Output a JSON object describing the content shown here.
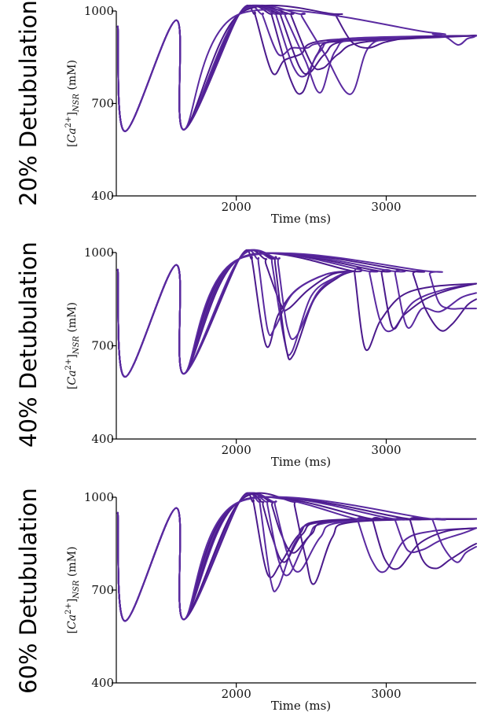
{
  "chart_data": [
    {
      "type": "line",
      "title": "20% Detubulation",
      "xlabel": "Time (ms)",
      "ylabel": {
        "prefix": "[",
        "main": "Ca",
        "sup": "2+",
        "close": "]",
        "sub": "NSR",
        "unit": " (mM)"
      },
      "xlim": [
        1200,
        3600
      ],
      "ylim": [
        400,
        1000
      ],
      "xticks": [
        2000,
        3000
      ],
      "xtick_labels": [
        "2000",
        "3000"
      ],
      "yticks": [
        400,
        700,
        1000
      ],
      "ytick_labels": [
        "400",
        "700",
        "1000"
      ],
      "series": [
        {
          "x": [
            1210,
            1260,
            1600,
            1650,
            2020,
            2120,
            2130,
            2240,
            2320,
            2430,
            2600,
            3600
          ],
          "y": [
            950,
            610,
            970,
            615,
            990,
            990,
            980,
            800,
            840,
            860,
            905,
            920
          ]
        },
        {
          "x": [
            1210,
            1260,
            1600,
            1650,
            2020,
            2170,
            2180,
            2280,
            2370,
            2470,
            2640,
            3600
          ],
          "y": [
            950,
            610,
            970,
            615,
            990,
            990,
            980,
            860,
            880,
            880,
            900,
            920
          ]
        },
        {
          "x": [
            1210,
            1260,
            1600,
            1650,
            2020,
            2230,
            2240,
            2360,
            2440,
            2540,
            2700,
            3600
          ],
          "y": [
            950,
            610,
            970,
            615,
            990,
            990,
            980,
            780,
            735,
            860,
            905,
            920
          ]
        },
        {
          "x": [
            1210,
            1260,
            1600,
            1650,
            2020,
            2260,
            2270,
            2380,
            2460,
            2560,
            2720,
            3600
          ],
          "y": [
            950,
            610,
            970,
            615,
            990,
            990,
            980,
            820,
            790,
            870,
            910,
            920
          ]
        },
        {
          "x": [
            1210,
            1260,
            1600,
            1650,
            2020,
            2290,
            2300,
            2420,
            2490,
            2590,
            2760,
            3600
          ],
          "y": [
            950,
            610,
            970,
            615,
            990,
            990,
            980,
            820,
            800,
            860,
            905,
            920
          ]
        },
        {
          "x": [
            1210,
            1260,
            1600,
            1650,
            2020,
            2320,
            2330,
            2460,
            2560,
            2660,
            2820,
            3600
          ],
          "y": [
            950,
            610,
            970,
            615,
            990,
            990,
            980,
            840,
            735,
            870,
            910,
            920
          ]
        },
        {
          "x": [
            1210,
            1260,
            1600,
            1650,
            2020,
            2360,
            2370,
            2500,
            2580,
            2680,
            2860,
            3600
          ],
          "y": [
            950,
            610,
            970,
            615,
            990,
            990,
            980,
            830,
            815,
            860,
            900,
            920
          ]
        },
        {
          "x": [
            1210,
            1260,
            1600,
            1650,
            2020,
            2430,
            2440,
            2590,
            2760,
            2880,
            3060,
            3600
          ],
          "y": [
            950,
            610,
            970,
            615,
            990,
            990,
            980,
            860,
            730,
            880,
            910,
            920
          ]
        },
        {
          "x": [
            1210,
            1260,
            1600,
            1650,
            2020,
            2660,
            2670,
            2770,
            2880,
            3000,
            3200,
            3600
          ],
          "y": [
            950,
            610,
            970,
            615,
            990,
            990,
            980,
            900,
            880,
            900,
            915,
            920
          ]
        },
        {
          "x": [
            1210,
            1260,
            1600,
            1650,
            2020,
            3300,
            3310,
            3400,
            3480,
            3540,
            3580,
            3600
          ],
          "y": [
            950,
            610,
            970,
            615,
            990,
            930,
            925,
            915,
            890,
            910,
            915,
            920
          ]
        }
      ]
    },
    {
      "type": "line",
      "title": "40% Detubulation",
      "xlabel": "Time (ms)",
      "ylabel": {
        "prefix": "[",
        "main": "Ca",
        "sup": "2+",
        "close": "]",
        "sub": "NSR",
        "unit": " (mM)"
      },
      "xlim": [
        1200,
        3600
      ],
      "ylim": [
        400,
        1000
      ],
      "xticks": [
        2000,
        3000
      ],
      "xtick_labels": [
        "2000",
        "3000"
      ],
      "yticks": [
        400,
        700,
        1000
      ],
      "ytick_labels": [
        "400",
        "700",
        "1000"
      ],
      "series": [
        {
          "x": [
            1210,
            1260,
            1600,
            1650,
            2020,
            2100,
            2110,
            2200,
            2280,
            2400,
            2600,
            2780
          ],
          "y": [
            945,
            600,
            960,
            610,
            980,
            980,
            960,
            700,
            800,
            880,
            930,
            940
          ]
        },
        {
          "x": [
            1210,
            1260,
            1600,
            1650,
            2020,
            2140,
            2150,
            2210,
            2260,
            2380,
            2600,
            2780
          ],
          "y": [
            945,
            600,
            960,
            610,
            980,
            980,
            960,
            750,
            760,
            870,
            930,
            940
          ]
        },
        {
          "x": [
            1210,
            1260,
            1600,
            1650,
            2020,
            2190,
            2200,
            2300,
            2350,
            2480,
            2640,
            2780
          ],
          "y": [
            945,
            600,
            960,
            610,
            980,
            980,
            960,
            830,
            820,
            880,
            930,
            940
          ]
        },
        {
          "x": [
            1210,
            1260,
            1600,
            1650,
            2020,
            2230,
            2240,
            2320,
            2370,
            2500,
            2660,
            2780
          ],
          "y": [
            945,
            600,
            960,
            610,
            980,
            980,
            960,
            720,
            680,
            860,
            920,
            940
          ]
        },
        {
          "x": [
            1210,
            1260,
            1600,
            1650,
            2020,
            2250,
            2260,
            2330,
            2380,
            2520,
            2680,
            2780
          ],
          "y": [
            945,
            600,
            960,
            610,
            980,
            980,
            960,
            700,
            670,
            850,
            920,
            940
          ]
        },
        {
          "x": [
            1210,
            1260,
            1600,
            1650,
            2020,
            2270,
            2280,
            2340,
            2400,
            2540,
            2700,
            2780
          ],
          "y": [
            945,
            600,
            960,
            610,
            980,
            980,
            960,
            760,
            730,
            870,
            930,
            940
          ]
        },
        {
          "x": [
            1210,
            1260,
            1600,
            1650,
            2020,
            2780,
            2790,
            2860,
            2960,
            3100,
            3300,
            3600
          ],
          "y": [
            945,
            600,
            960,
            610,
            980,
            940,
            930,
            690,
            780,
            860,
            890,
            900
          ]
        },
        {
          "x": [
            1210,
            1260,
            1600,
            1650,
            2020,
            2880,
            2890,
            2960,
            3040,
            3180,
            3380,
            3600
          ],
          "y": [
            945,
            600,
            960,
            610,
            980,
            940,
            930,
            780,
            750,
            840,
            880,
            900
          ]
        },
        {
          "x": [
            1210,
            1260,
            1600,
            1650,
            2020,
            2960,
            2970,
            3040,
            3120,
            3260,
            3420,
            3600
          ],
          "y": [
            945,
            600,
            960,
            610,
            980,
            940,
            930,
            760,
            800,
            850,
            880,
            900
          ]
        },
        {
          "x": [
            1210,
            1260,
            1600,
            1650,
            2020,
            3050,
            3060,
            3140,
            3240,
            3360,
            3500,
            3600
          ],
          "y": [
            945,
            600,
            960,
            610,
            980,
            940,
            930,
            760,
            820,
            810,
            855,
            870
          ]
        },
        {
          "x": [
            1210,
            1260,
            1600,
            1650,
            2020,
            3170,
            3180,
            3260,
            3360,
            3440,
            3540,
            3600
          ],
          "y": [
            945,
            600,
            960,
            610,
            980,
            940,
            930,
            820,
            750,
            770,
            830,
            850
          ]
        },
        {
          "x": [
            1210,
            1260,
            1600,
            1650,
            2020,
            3280,
            3290,
            3350,
            3420,
            3500,
            3560,
            3600
          ],
          "y": [
            945,
            600,
            960,
            610,
            980,
            940,
            930,
            840,
            820,
            820,
            820,
            820
          ]
        }
      ]
    },
    {
      "type": "line",
      "title": "60% Detubulation",
      "xlabel": "Time (ms)",
      "ylabel": {
        "prefix": "[",
        "main": "Ca",
        "sup": "2+",
        "close": "]",
        "sub": "NSR",
        "unit": " (mM)"
      },
      "xlim": [
        1200,
        3600
      ],
      "ylim": [
        400,
        1000
      ],
      "xticks": [
        2000,
        3000
      ],
      "xtick_labels": [
        "2000",
        "3000"
      ],
      "yticks": [
        400,
        700,
        1000
      ],
      "ytick_labels": [
        "400",
        "700",
        "1000"
      ],
      "series": [
        {
          "x": [
            1210,
            1260,
            1600,
            1650,
            2020,
            2110,
            2120,
            2210,
            2300,
            2420,
            2600,
            3600
          ],
          "y": [
            950,
            600,
            965,
            605,
            985,
            985,
            970,
            750,
            790,
            880,
            925,
            930
          ]
        },
        {
          "x": [
            1210,
            1260,
            1600,
            1650,
            2020,
            2150,
            2160,
            2230,
            2280,
            2400,
            2580,
            3600
          ],
          "y": [
            950,
            600,
            965,
            605,
            985,
            985,
            970,
            730,
            710,
            860,
            920,
            930
          ]
        },
        {
          "x": [
            1210,
            1260,
            1600,
            1650,
            2020,
            2170,
            2180,
            2240,
            2320,
            2440,
            2620,
            3600
          ],
          "y": [
            950,
            600,
            965,
            605,
            985,
            985,
            970,
            870,
            790,
            880,
            925,
            930
          ]
        },
        {
          "x": [
            1210,
            1260,
            1600,
            1650,
            2020,
            2200,
            2210,
            2280,
            2350,
            2480,
            2650,
            3600
          ],
          "y": [
            950,
            600,
            965,
            605,
            985,
            985,
            970,
            800,
            750,
            870,
            920,
            930
          ]
        },
        {
          "x": [
            1210,
            1260,
            1600,
            1650,
            2020,
            2230,
            2240,
            2300,
            2380,
            2500,
            2660,
            3600
          ],
          "y": [
            950,
            600,
            965,
            605,
            985,
            985,
            970,
            880,
            820,
            880,
            925,
            930
          ]
        },
        {
          "x": [
            1210,
            1260,
            1600,
            1650,
            2020,
            2250,
            2260,
            2340,
            2420,
            2560,
            2720,
            3600
          ],
          "y": [
            950,
            600,
            965,
            605,
            985,
            985,
            970,
            820,
            760,
            870,
            920,
            930
          ]
        },
        {
          "x": [
            1210,
            1260,
            1600,
            1650,
            2020,
            2380,
            2390,
            2460,
            2520,
            2640,
            2780,
            3600
          ],
          "y": [
            950,
            600,
            965,
            605,
            985,
            985,
            970,
            810,
            720,
            870,
            920,
            930
          ]
        },
        {
          "x": [
            1210,
            1260,
            1600,
            1650,
            2020,
            2800,
            2810,
            2900,
            2990,
            3120,
            3300,
            3600
          ],
          "y": [
            950,
            600,
            965,
            605,
            985,
            930,
            925,
            800,
            760,
            860,
            890,
            900
          ]
        },
        {
          "x": [
            1210,
            1260,
            1600,
            1650,
            2020,
            2900,
            2910,
            2990,
            3080,
            3220,
            3400,
            3600
          ],
          "y": [
            950,
            600,
            965,
            605,
            985,
            930,
            925,
            800,
            770,
            850,
            890,
            900
          ]
        },
        {
          "x": [
            1210,
            1260,
            1600,
            1650,
            2020,
            3050,
            3060,
            3140,
            3240,
            3360,
            3520,
            3600
          ],
          "y": [
            950,
            600,
            965,
            605,
            985,
            930,
            925,
            830,
            830,
            860,
            885,
            900
          ]
        },
        {
          "x": [
            1210,
            1260,
            1600,
            1650,
            2020,
            3150,
            3160,
            3240,
            3330,
            3430,
            3560,
            3600
          ],
          "y": [
            950,
            600,
            965,
            605,
            985,
            930,
            925,
            800,
            770,
            800,
            840,
            850
          ]
        },
        {
          "x": [
            1210,
            1260,
            1600,
            1650,
            2020,
            3300,
            3310,
            3380,
            3470,
            3530,
            3580,
            3600
          ],
          "y": [
            950,
            600,
            965,
            605,
            985,
            930,
            925,
            840,
            790,
            820,
            835,
            840
          ]
        }
      ]
    }
  ],
  "style": {
    "line_color": "#4b1a8c",
    "line_color_alt": "#5a2aa0",
    "axis_color": "#000000"
  }
}
